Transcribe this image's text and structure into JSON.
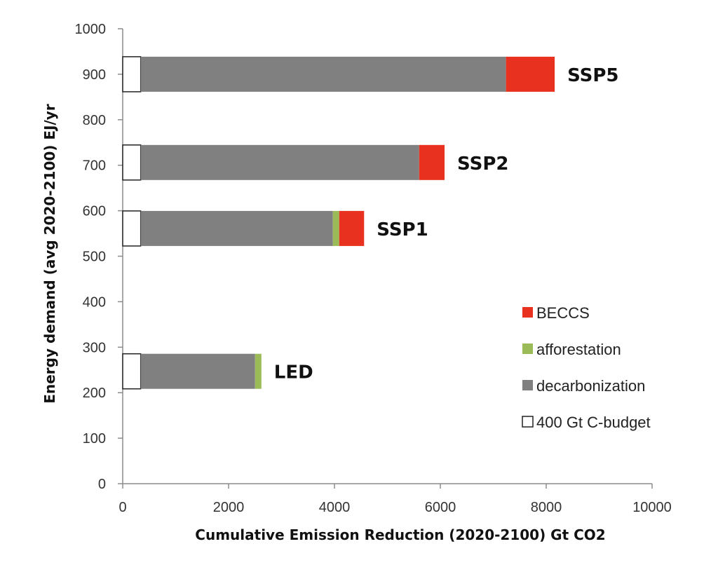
{
  "chart_data": {
    "type": "bar",
    "orientation": "horizontal-stacked",
    "title": "",
    "xlabel": "Cumulative Emission Reduction (2020-2100) Gt CO2",
    "ylabel": "Energy demand (avg 2020-2100) EJ/yr",
    "xlim": [
      0,
      10000
    ],
    "ylim": [
      0,
      1000
    ],
    "x_ticks": [
      "0",
      "2000",
      "4000",
      "6000",
      "8000",
      "10000"
    ],
    "y_ticks": [
      "0",
      "100",
      "200",
      "300",
      "400",
      "500",
      "600",
      "700",
      "800",
      "900",
      "1000"
    ],
    "grid": false,
    "legend_position": "right-center",
    "categories": [
      "SSP5",
      "SSP2",
      "SSP1",
      "LED"
    ],
    "category_y": [
      900,
      706,
      561,
      247
    ],
    "series": [
      {
        "name": "400 Gt C-budget",
        "color": "#ffffff",
        "values": [
          340,
          340,
          340,
          340
        ]
      },
      {
        "name": "decarbonization",
        "color": "#808080",
        "values": [
          6900,
          5260,
          3630,
          2160
        ]
      },
      {
        "name": "afforestation",
        "color": "#9bbb59",
        "values": [
          0,
          0,
          120,
          120
        ]
      },
      {
        "name": "BECCS",
        "color": "#e8311f",
        "values": [
          920,
          480,
          470,
          0
        ]
      }
    ],
    "legend_order": [
      "BECCS",
      "afforestation",
      "decarbonization",
      "400 Gt C-budget"
    ]
  }
}
